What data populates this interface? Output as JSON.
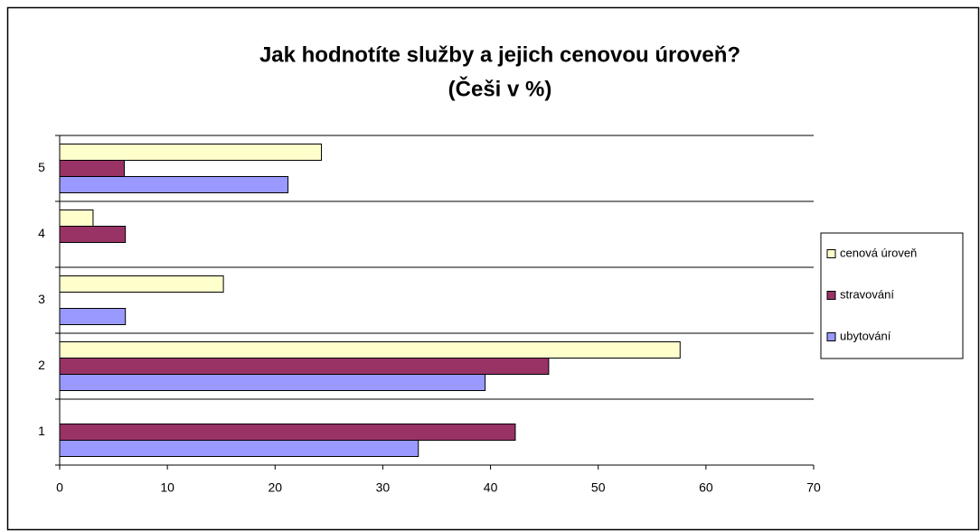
{
  "chart_data": {
    "type": "hbar",
    "title": "Jak hodnotíte služby a jejich cenovou úroveň?",
    "subtitle": "(Češi v %)",
    "categories": [
      "1",
      "2",
      "3",
      "4",
      "5"
    ],
    "series": [
      {
        "name": "ubytování",
        "color": "#9999ff",
        "values": [
          33.3,
          39.5,
          6.1,
          0,
          21.2
        ]
      },
      {
        "name": "stravování",
        "color": "#993366",
        "values": [
          42.3,
          45.4,
          0,
          6.1,
          6.0
        ]
      },
      {
        "name": "cenová úroveň",
        "color": "#ffffcc",
        "values": [
          0,
          57.6,
          15.2,
          3.1,
          24.3
        ]
      }
    ],
    "xlim": [
      0,
      70
    ],
    "xticks": [
      0,
      10,
      20,
      30,
      40,
      50,
      60,
      70
    ],
    "legend": "right"
  }
}
